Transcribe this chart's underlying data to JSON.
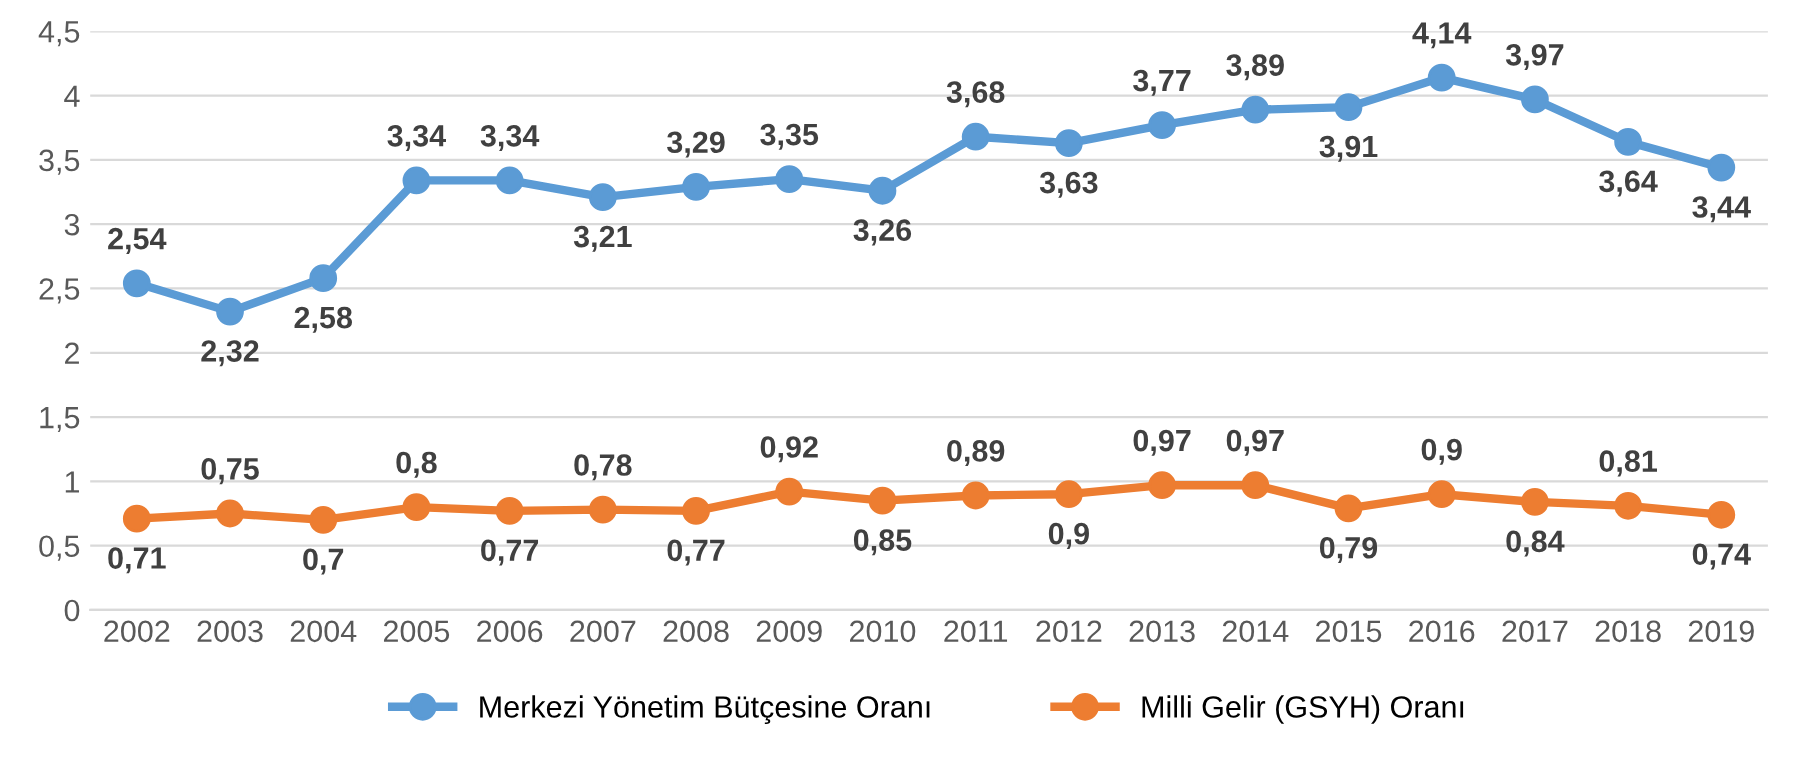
{
  "chart_data": {
    "type": "line",
    "categories": [
      "2002",
      "2003",
      "2004",
      "2005",
      "2006",
      "2007",
      "2008",
      "2009",
      "2010",
      "2011",
      "2012",
      "2013",
      "2014",
      "2015",
      "2016",
      "2017",
      "2018",
      "2019"
    ],
    "series": [
      {
        "name": "Merkezi Yönetim Bütçesine Oranı",
        "color": "#5b9bd5",
        "values": [
          2.54,
          2.32,
          2.58,
          3.34,
          3.34,
          3.21,
          3.29,
          3.35,
          3.26,
          3.68,
          3.63,
          3.77,
          3.89,
          3.91,
          4.14,
          3.97,
          3.64,
          3.44
        ],
        "value_labels": [
          "2,54",
          "2,32",
          "2,58",
          "3,34",
          "3,34",
          "3,21",
          "3,29",
          "3,35",
          "3,26",
          "3,68",
          "3,63",
          "3,77",
          "3,89",
          "3,91",
          "4,14",
          "3,97",
          "3,64",
          "3,44"
        ]
      },
      {
        "name": "Milli Gelir (GSYH) Oranı",
        "color": "#ed7d31",
        "values": [
          0.71,
          0.75,
          0.7,
          0.8,
          0.77,
          0.78,
          0.77,
          0.92,
          0.85,
          0.89,
          0.9,
          0.97,
          0.97,
          0.79,
          0.9,
          0.84,
          0.81,
          0.74
        ],
        "value_labels": [
          "0,71",
          "0,75",
          "0,7",
          "0,8",
          "0,77",
          "0,78",
          "0,77",
          "0,92",
          "0,85",
          "0,89",
          "0,9",
          "0,97",
          "0,97",
          "0,79",
          "0,9",
          "0,84",
          "0,81",
          "0,74"
        ]
      }
    ],
    "ylim": [
      0,
      4.5
    ],
    "yticks": [
      0,
      {
        "value": 0.5,
        "label": "0,5"
      },
      1,
      {
        "value": 1.5,
        "label": "1,5"
      },
      2,
      {
        "value": 2.5,
        "label": "2,5"
      },
      3,
      {
        "value": 3.5,
        "label": "3,5"
      },
      4,
      {
        "value": 4.5,
        "label": "4,5"
      }
    ],
    "grid": "y",
    "legend": "bottom",
    "marker": "circle",
    "line_style": "solid"
  }
}
